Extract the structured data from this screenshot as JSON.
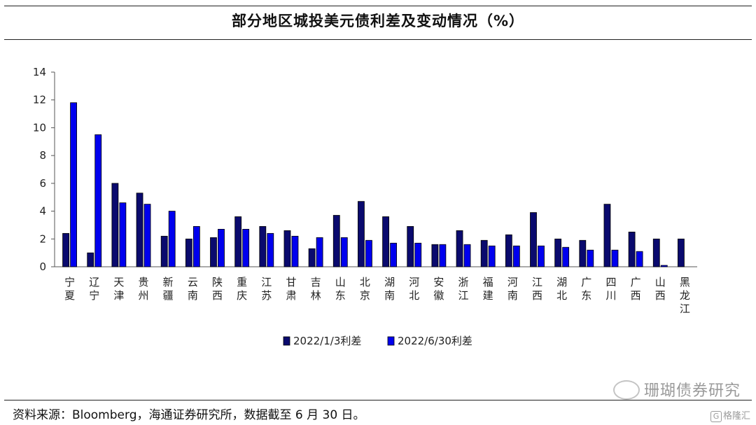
{
  "page": {
    "title": "部分地区城投美元债利差及变动情况（%）",
    "source": "资料来源：Bloomberg，海通证券研究所，数据截至 6 月 30 日。",
    "watermark": "珊瑚债券研究",
    "logo_text": "格隆汇",
    "logo_glyph": "G"
  },
  "colors": {
    "series1": "#0a0a6e",
    "series2": "#0000ee",
    "axis": "#555555"
  },
  "chart_data": {
    "type": "bar",
    "ylim": [
      0,
      14
    ],
    "yticks": [
      0,
      2,
      4,
      6,
      8,
      10,
      12,
      14
    ],
    "legend_position": "bottom-center",
    "grid": false,
    "categories": [
      "宁夏",
      "辽宁",
      "天津",
      "贵州",
      "新疆",
      "云南",
      "陕西",
      "重庆",
      "江苏",
      "甘肃",
      "吉林",
      "山东",
      "北京",
      "湖南",
      "河北",
      "安徽",
      "浙江",
      "福建",
      "河南",
      "江西",
      "湖北",
      "广东",
      "四川",
      "广西",
      "山西",
      "黑龙江"
    ],
    "series": [
      {
        "name": "2022/1/3利差",
        "values": [
          2.4,
          1.0,
          6.0,
          5.3,
          2.2,
          2.0,
          2.1,
          3.6,
          2.9,
          2.6,
          1.3,
          3.7,
          4.7,
          3.6,
          2.9,
          1.6,
          2.6,
          1.9,
          2.3,
          3.9,
          2.0,
          1.9,
          4.5,
          2.5,
          2.0,
          2.0
        ]
      },
      {
        "name": "2022/6/30利差",
        "values": [
          11.8,
          9.5,
          4.6,
          4.5,
          4.0,
          2.9,
          2.7,
          2.7,
          2.4,
          2.2,
          2.1,
          2.1,
          1.9,
          1.7,
          1.7,
          1.6,
          1.6,
          1.5,
          1.5,
          1.5,
          1.4,
          1.2,
          1.2,
          1.1,
          0.1,
          null
        ]
      }
    ]
  }
}
